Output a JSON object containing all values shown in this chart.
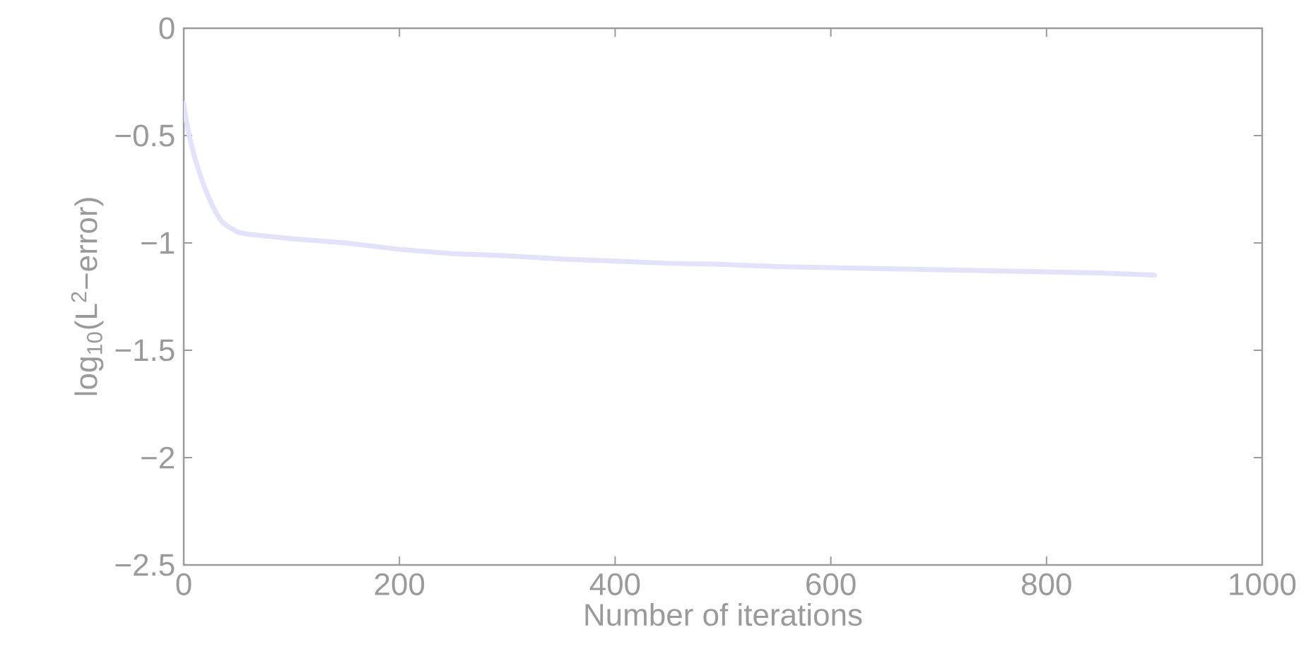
{
  "chart_data": {
    "type": "line",
    "xlabel": "Number of iterations",
    "ylabel": "log$_{10}$(L$^{2}$−error)",
    "xlim": [
      0,
      1000
    ],
    "ylim": [
      -2.5,
      0
    ],
    "xticks": [
      0,
      200,
      400,
      600,
      800,
      1000
    ],
    "yticks": [
      {
        "value": -2.5,
        "label": "−2.5"
      },
      {
        "value": -2,
        "label": "−2"
      },
      {
        "value": -1.5,
        "label": "−1.5"
      },
      {
        "value": -1,
        "label": "−1"
      },
      {
        "value": -0.5,
        "label": "−0.5"
      },
      0
    ],
    "grid": false,
    "marker": "none",
    "line_style": "solid",
    "series": [
      {
        "color": "#e2e2fa",
        "x": [
          0,
          2,
          5,
          10,
          15,
          20,
          25,
          30,
          35,
          40,
          50,
          60,
          80,
          100,
          150,
          200,
          250,
          300,
          350,
          400,
          450,
          500,
          550,
          600,
          650,
          700,
          750,
          800,
          850,
          900
        ],
        "values": [
          -0.35,
          -0.42,
          -0.5,
          -0.6,
          -0.68,
          -0.75,
          -0.81,
          -0.86,
          -0.9,
          -0.92,
          -0.95,
          -0.96,
          -0.97,
          -0.98,
          -1.0,
          -1.03,
          -1.05,
          -1.06,
          -1.075,
          -1.085,
          -1.095,
          -1.1,
          -1.11,
          -1.115,
          -1.12,
          -1.125,
          -1.13,
          -1.135,
          -1.14,
          -1.15
        ]
      }
    ]
  }
}
